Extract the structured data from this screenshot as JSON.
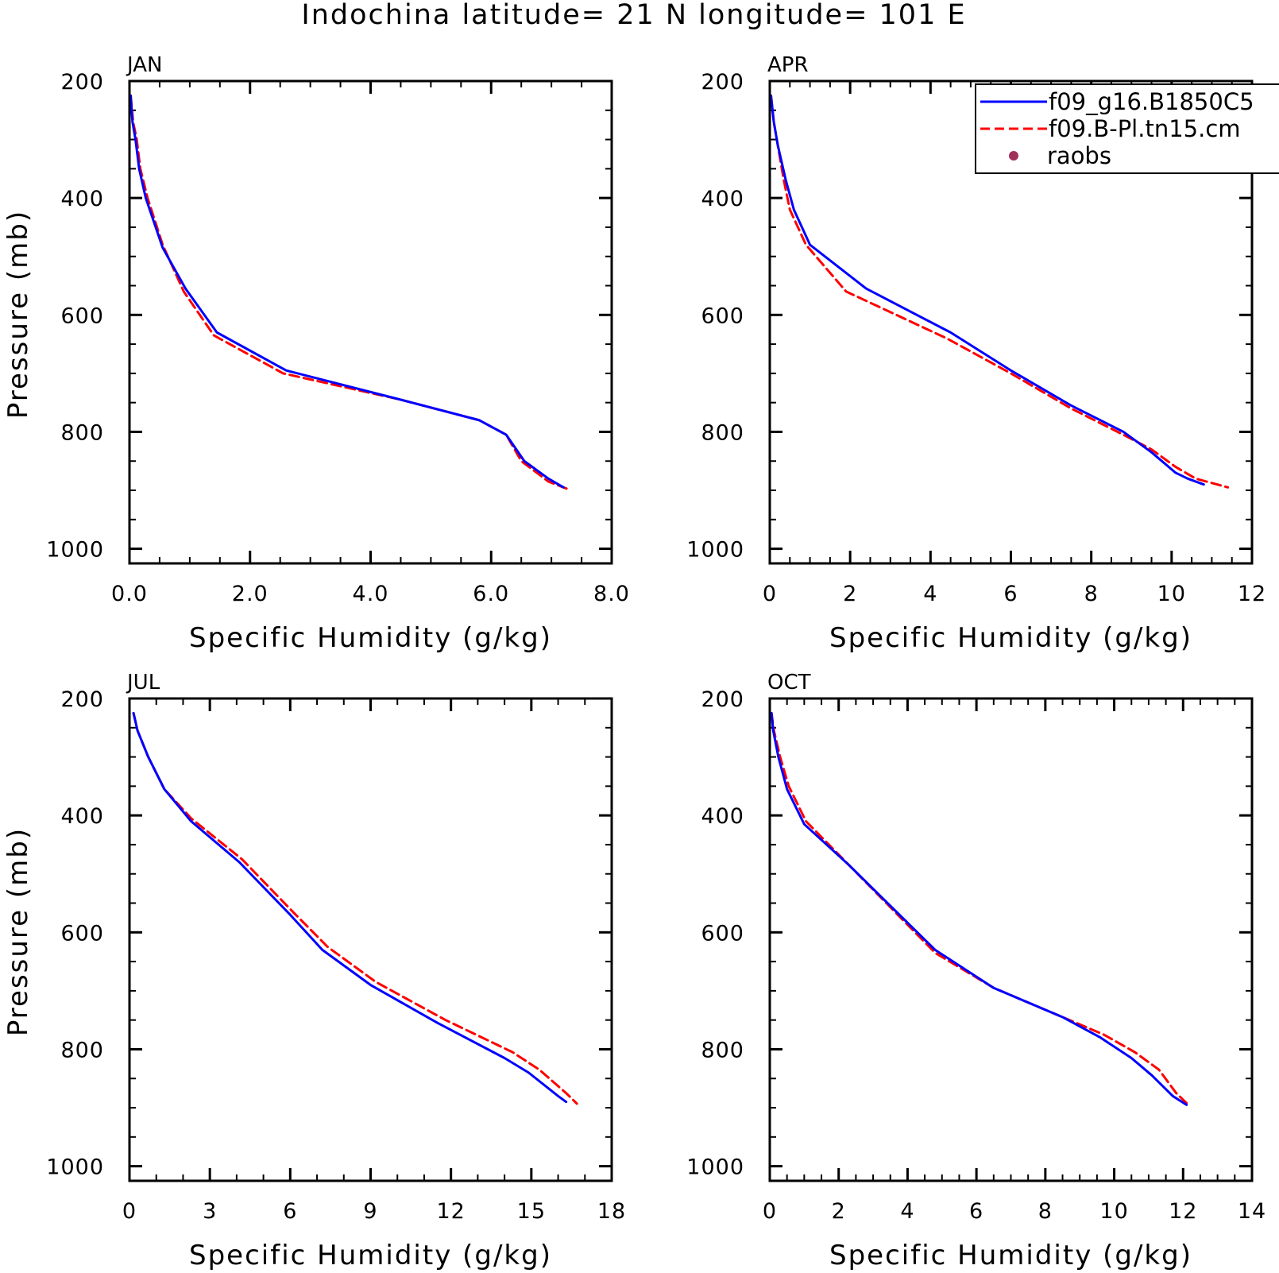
{
  "title": "Indochina  latitude= 21 N longitude= 101 E",
  "legend": {
    "position": "top-right",
    "entries": [
      {
        "label": "f09_g16.B1850C5",
        "color": "#0000ff",
        "style": "solid"
      },
      {
        "label": "f09.B-Pl.tn15.cm",
        "color": "#ff0000",
        "style": "dashed"
      },
      {
        "label": "raobs",
        "color": "#a0305a",
        "style": "marker"
      }
    ]
  },
  "chart_data": [
    {
      "type": "line",
      "title": "JAN",
      "xlabel": "Specific Humidity (g/kg)",
      "ylabel": "Pressure (mb)",
      "xlim": [
        0,
        8
      ],
      "ylim": [
        200,
        1025
      ],
      "y_reversed": true,
      "xticks": [
        0,
        2,
        4,
        6,
        8
      ],
      "xtick_labels": [
        "0.0",
        "2.0",
        "4.0",
        "6.0",
        "8.0"
      ],
      "xminor": 0.5,
      "yticks": [
        200,
        400,
        600,
        800,
        1000
      ],
      "ytick_labels": [
        "200",
        "400",
        "600",
        "800",
        "1000"
      ],
      "yminor": 50,
      "series": [
        {
          "name": "f09_g16.B1850C5",
          "color": "#0000ff",
          "style": "solid",
          "x": [
            0.02,
            0.05,
            0.1,
            0.16,
            0.27,
            0.55,
            0.93,
            1.45,
            2.6,
            4.5,
            5.8,
            6.25,
            6.55,
            6.95,
            7.2
          ],
          "y": [
            225,
            270,
            300,
            350,
            400,
            485,
            555,
            630,
            695,
            745,
            780,
            805,
            850,
            880,
            895
          ]
        },
        {
          "name": "f09.B-Pl.tn15.cm",
          "color": "#ff0000",
          "style": "dashed",
          "x": [
            0.02,
            0.06,
            0.12,
            0.18,
            0.3,
            0.55,
            0.9,
            1.4,
            2.55,
            4.5,
            5.8,
            6.25,
            6.5,
            6.95,
            7.25
          ],
          "y": [
            225,
            270,
            300,
            350,
            400,
            480,
            560,
            635,
            700,
            745,
            780,
            805,
            850,
            885,
            897
          ]
        }
      ]
    },
    {
      "type": "line",
      "title": "APR",
      "xlabel": "Specific Humidity (g/kg)",
      "ylabel": "",
      "xlim": [
        0,
        12
      ],
      "ylim": [
        200,
        1025
      ],
      "y_reversed": true,
      "xticks": [
        0,
        2,
        4,
        6,
        8,
        10,
        12
      ],
      "xtick_labels": [
        "0",
        "2",
        "4",
        "6",
        "8",
        "10",
        "12"
      ],
      "xminor": 0.5,
      "yticks": [
        200,
        400,
        600,
        800,
        1000
      ],
      "ytick_labels": [
        "200",
        "400",
        "600",
        "800",
        "1000"
      ],
      "yminor": 50,
      "series": [
        {
          "name": "f09_g16.B1850C5",
          "color": "#0000ff",
          "style": "solid",
          "x": [
            0.03,
            0.1,
            0.2,
            0.4,
            0.6,
            1.0,
            2.4,
            4.5,
            6.0,
            7.5,
            8.8,
            9.5,
            10.1,
            10.4,
            10.8
          ],
          "y": [
            225,
            270,
            310,
            370,
            420,
            480,
            555,
            630,
            695,
            755,
            800,
            835,
            870,
            880,
            890
          ]
        },
        {
          "name": "f09.B-Pl.tn15.cm",
          "color": "#ff0000",
          "style": "dashed",
          "x": [
            0.03,
            0.1,
            0.2,
            0.35,
            0.5,
            0.9,
            1.9,
            4.4,
            6.0,
            7.5,
            8.8,
            9.5,
            10.1,
            10.6,
            11.4
          ],
          "y": [
            225,
            270,
            310,
            370,
            420,
            480,
            560,
            640,
            700,
            760,
            805,
            830,
            860,
            880,
            895
          ]
        }
      ]
    },
    {
      "type": "line",
      "title": "JUL",
      "xlabel": "Specific Humidity (g/kg)",
      "ylabel": "Pressure (mb)",
      "xlim": [
        0,
        18
      ],
      "ylim": [
        200,
        1025
      ],
      "y_reversed": true,
      "xticks": [
        0,
        3,
        6,
        9,
        12,
        15,
        18
      ],
      "xtick_labels": [
        "0",
        "3",
        "6",
        "9",
        "12",
        "15",
        "18"
      ],
      "xminor": 1,
      "yticks": [
        200,
        400,
        600,
        800,
        1000
      ],
      "ytick_labels": [
        "200",
        "400",
        "600",
        "800",
        "1000"
      ],
      "yminor": 50,
      "series": [
        {
          "name": "f09_g16.B1850C5",
          "color": "#0000ff",
          "style": "solid",
          "x": [
            0.15,
            0.3,
            0.7,
            1.3,
            2.3,
            4.1,
            6.0,
            7.2,
            9.0,
            11.5,
            14.0,
            14.9,
            16.0,
            16.3
          ],
          "y": [
            225,
            255,
            300,
            355,
            410,
            480,
            570,
            630,
            690,
            755,
            815,
            840,
            880,
            890
          ]
        },
        {
          "name": "f09.B-Pl.tn15.cm",
          "color": "#ff0000",
          "style": "dashed",
          "x": [
            0.15,
            0.3,
            0.7,
            1.3,
            2.3,
            4.2,
            6.1,
            7.4,
            9.2,
            11.8,
            14.3,
            15.3,
            16.3,
            16.7
          ],
          "y": [
            225,
            255,
            300,
            355,
            405,
            475,
            565,
            625,
            685,
            750,
            805,
            835,
            875,
            893
          ]
        }
      ]
    },
    {
      "type": "line",
      "title": "OCT",
      "xlabel": "Specific Humidity (g/kg)",
      "ylabel": "",
      "xlim": [
        0,
        14
      ],
      "ylim": [
        200,
        1025
      ],
      "y_reversed": true,
      "xticks": [
        0,
        2,
        4,
        6,
        8,
        10,
        12,
        14
      ],
      "xtick_labels": [
        "0",
        "2",
        "4",
        "6",
        "8",
        "10",
        "12",
        "14"
      ],
      "xminor": 0.5,
      "yticks": [
        200,
        400,
        600,
        800,
        1000
      ],
      "ytick_labels": [
        "200",
        "400",
        "600",
        "800",
        "1000"
      ],
      "yminor": 50,
      "series": [
        {
          "name": "f09_g16.B1850C5",
          "color": "#0000ff",
          "style": "solid",
          "x": [
            0.05,
            0.1,
            0.25,
            0.5,
            1.0,
            2.3,
            4.8,
            6.5,
            8.5,
            9.6,
            10.5,
            11.1,
            11.7,
            12.1
          ],
          "y": [
            225,
            255,
            300,
            355,
            415,
            485,
            630,
            695,
            745,
            780,
            815,
            845,
            880,
            895
          ]
        },
        {
          "name": "f09.B-Pl.tn15.cm",
          "color": "#ff0000",
          "style": "dashed",
          "x": [
            0.05,
            0.12,
            0.3,
            0.55,
            1.05,
            2.3,
            4.8,
            6.5,
            8.5,
            9.7,
            10.6,
            11.3,
            11.8,
            12.1
          ],
          "y": [
            225,
            255,
            300,
            350,
            410,
            485,
            635,
            695,
            745,
            775,
            805,
            835,
            875,
            892
          ]
        }
      ]
    }
  ]
}
